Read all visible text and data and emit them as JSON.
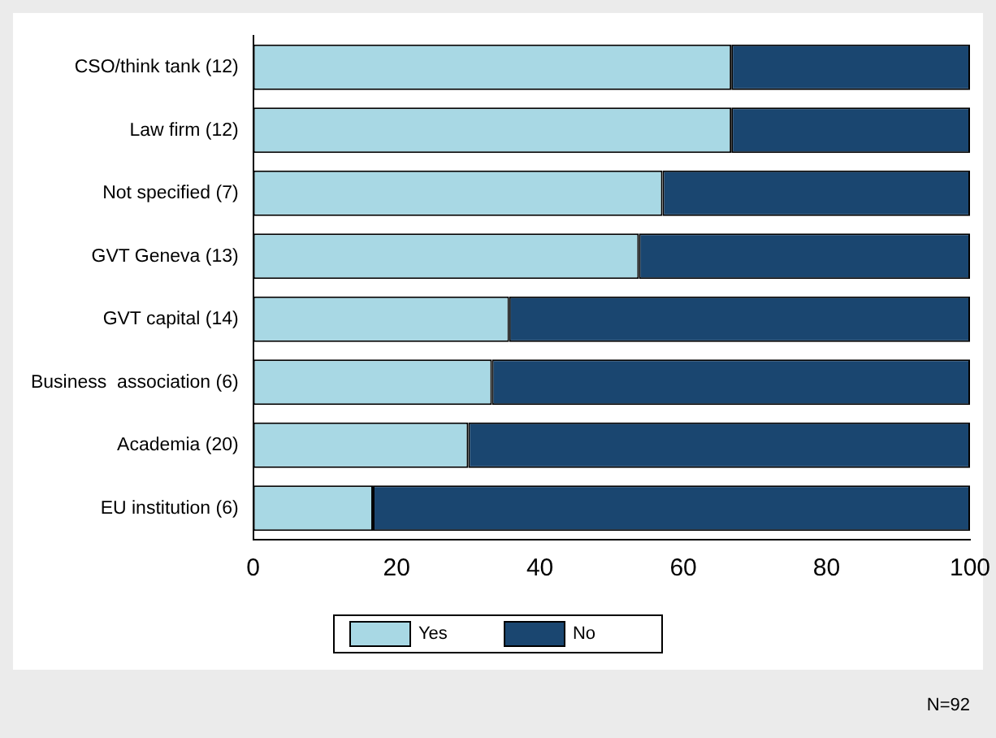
{
  "chart_data": {
    "type": "bar",
    "orientation": "horizontal",
    "stacked": true,
    "categories": [
      "CSO/think tank (12)",
      "Law firm (12)",
      "Not specified (7)",
      "GVT Geneva (13)",
      "GVT capital (14)",
      "Business  association (6)",
      "Academia (20)",
      "EU institution (6)"
    ],
    "series": [
      {
        "name": "Yes",
        "color": "#a8d8e4",
        "values": [
          66.7,
          66.7,
          57.1,
          53.8,
          35.7,
          33.3,
          30,
          16.7
        ]
      },
      {
        "name": "No",
        "color": "#1a4670",
        "values": [
          33.3,
          33.3,
          42.9,
          46.2,
          64.3,
          66.7,
          70,
          83.3
        ]
      }
    ],
    "xlim": [
      0,
      100
    ],
    "xticks": [
      0,
      20,
      40,
      60,
      80,
      100
    ],
    "grid": false,
    "legend": "bottom",
    "annotations": [
      "N=92"
    ]
  }
}
